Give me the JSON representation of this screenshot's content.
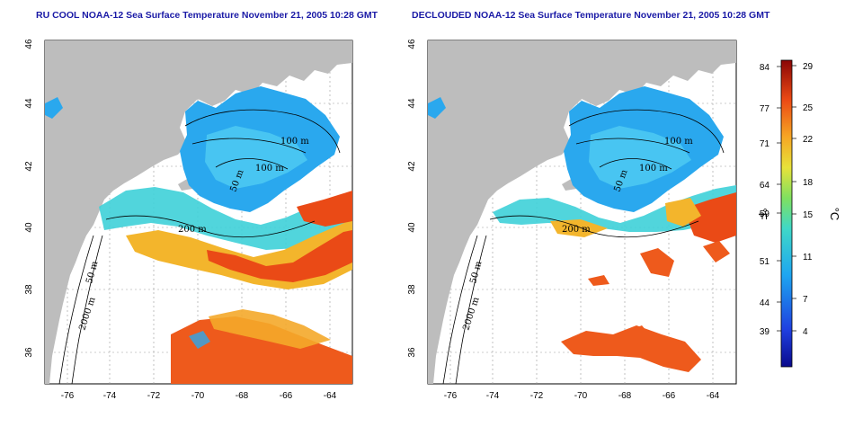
{
  "panels": [
    {
      "title": "RU COOL NOAA-12 Sea Surface Temperature November 21, 2005 10:28 GMT",
      "contours": [
        "100 m",
        "100 m",
        "50 m",
        "200 m",
        "50 m",
        "2000 m"
      ]
    },
    {
      "title": "DECLOUDED NOAA-12 Sea Surface Temperature November 21, 2005 10:28 GMT",
      "contours": [
        "100 m",
        "100 m",
        "50 m",
        "200 m",
        "50 m",
        "2000 m"
      ]
    }
  ],
  "axes": {
    "lon_ticks": [
      "-76",
      "-74",
      "-72",
      "-70",
      "-68",
      "-66",
      "-64"
    ],
    "lat_ticks": [
      "46",
      "44",
      "42",
      "40",
      "38",
      "36"
    ]
  },
  "colorbar": {
    "fahrenheit_ticks": [
      "84",
      "77",
      "71",
      "64",
      "59",
      "51",
      "44",
      "39"
    ],
    "celsius_ticks": [
      "29",
      "25",
      "22",
      "18",
      "15",
      "11",
      "7",
      "4"
    ],
    "unit_f": "°F",
    "unit_c": "°C"
  },
  "colors": {
    "land": "#bdbdbd",
    "cold": "#1e8fe6",
    "cool": "#3fc6f0",
    "warm": "#f2c22a",
    "hot": "#e83a12",
    "title": "#1a1aa6"
  }
}
